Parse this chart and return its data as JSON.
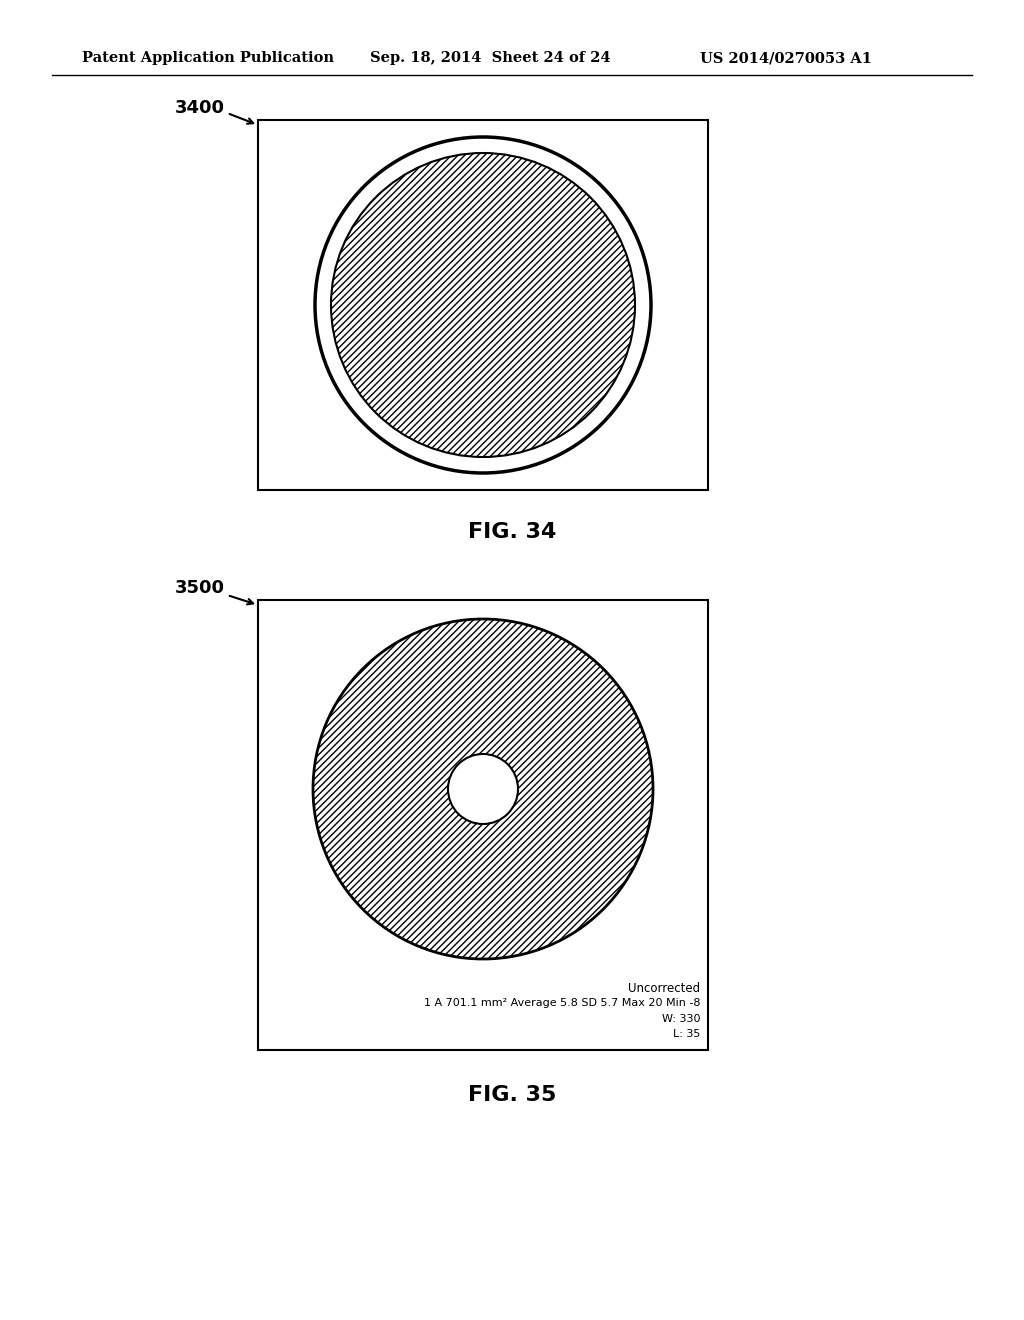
{
  "bg_color": "#ffffff",
  "line_color": "#000000",
  "header_text": "Patent Application Publication",
  "header_date": "Sep. 18, 2014  Sheet 24 of 24",
  "header_patent": "US 2014/0270053 A1",
  "header_fontsize": 10.5,
  "fig34_label": "3400",
  "fig34_caption": "FIG. 34",
  "fig35_label": "3500",
  "fig35_caption": "FIG. 35",
  "fig35_text1": "Uncorrected",
  "fig35_text2": "1 A 701.1 mm² Average 5.8 SD 5.7 Max 20 Min -8",
  "fig35_text3": "W: 330",
  "fig35_text4": "L: 35",
  "hatch_density": 5
}
